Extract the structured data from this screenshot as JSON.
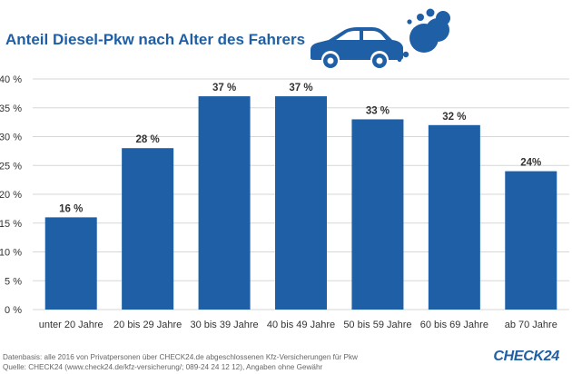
{
  "header": {
    "title": "Anteil Diesel-Pkw nach Alter des Fahrers"
  },
  "illustration": {
    "icon": "car-with-exhaust-cloud-icon",
    "color": "#1f5fa6"
  },
  "chart_data": {
    "type": "bar",
    "categories": [
      "unter 20 Jahre",
      "20 bis 29 Jahre",
      "30 bis 39 Jahre",
      "40 bis 49 Jahre",
      "50 bis 59 Jahre",
      "60 bis 69 Jahre",
      "ab 70 Jahre"
    ],
    "values": [
      16,
      28,
      37,
      37,
      33,
      32,
      24
    ],
    "data_labels": [
      "16 %",
      "28 %",
      "37 %",
      "37 %",
      "33 %",
      "32 %",
      "24%"
    ],
    "y_ticks": [
      0,
      5,
      10,
      15,
      20,
      25,
      30,
      35,
      40
    ],
    "y_tick_labels": [
      "0 %",
      "5 %",
      "10 %",
      "15 %",
      "20 %",
      "25 %",
      "30 %",
      "35 %",
      "40 %"
    ],
    "ylim": [
      0,
      40
    ],
    "grid": true,
    "bar_color": "#1f5fa6",
    "grid_color": "#d7d7d7"
  },
  "footer": {
    "source_line_1": "Datenbasis: alle 2016 von Privatpersonen über CHECK24.de abgeschlossenen Kfz-Versicherungen für Pkw",
    "source_line_2": "Quelle: CHECK24 (www.check24.de/kfz-versicherung/; 089-24 24 12 12), Angaben ohne Gewähr",
    "logo_text": "CHECK24"
  }
}
